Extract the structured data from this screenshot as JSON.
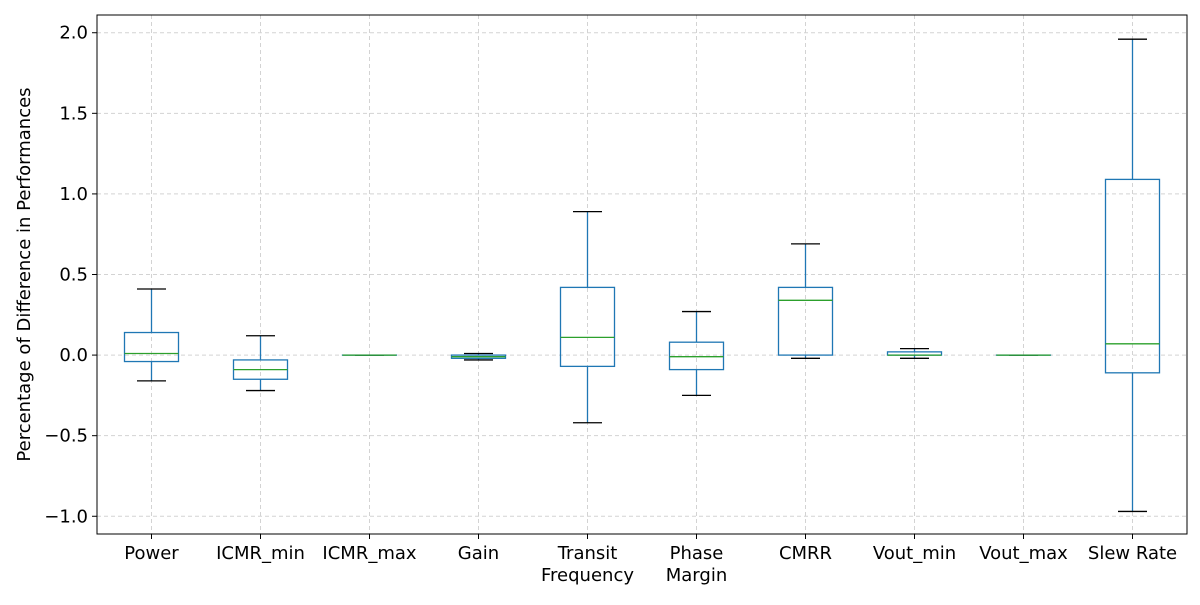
{
  "chart_data": {
    "type": "box",
    "title": "",
    "xlabel": "",
    "ylabel": "Percentage of Difference in Performances",
    "ylim": [
      -1.11,
      2.11
    ],
    "yticks": [
      -1.0,
      -0.5,
      0.0,
      0.5,
      1.0,
      1.5,
      2.0
    ],
    "ytick_labels": [
      "−1.0",
      "−0.5",
      "0.0",
      "0.5",
      "1.0",
      "1.5",
      "2.0"
    ],
    "grid": true,
    "categories": [
      [
        "Power"
      ],
      [
        "ICMR_min"
      ],
      [
        "ICMR_max"
      ],
      [
        "Gain"
      ],
      [
        "Transit",
        "Frequency"
      ],
      [
        "Phase",
        "Margin"
      ],
      [
        "CMRR"
      ],
      [
        "Vout_min"
      ],
      [
        "Vout_max"
      ],
      [
        "Slew Rate"
      ]
    ],
    "boxes": [
      {
        "whisker_low": -0.16,
        "q1": -0.04,
        "median": 0.01,
        "q3": 0.14,
        "whisker_high": 0.41
      },
      {
        "whisker_low": -0.22,
        "q1": -0.15,
        "median": -0.09,
        "q3": -0.03,
        "whisker_high": 0.12
      },
      {
        "whisker_low": 0.0,
        "q1": 0.0,
        "median": 0.0,
        "q3": 0.0,
        "whisker_high": 0.0
      },
      {
        "whisker_low": -0.03,
        "q1": -0.02,
        "median": -0.01,
        "q3": 0.0,
        "whisker_high": 0.01
      },
      {
        "whisker_low": -0.42,
        "q1": -0.07,
        "median": 0.11,
        "q3": 0.42,
        "whisker_high": 0.89
      },
      {
        "whisker_low": -0.25,
        "q1": -0.09,
        "median": -0.01,
        "q3": 0.08,
        "whisker_high": 0.27
      },
      {
        "whisker_low": -0.02,
        "q1": 0.0,
        "median": 0.34,
        "q3": 0.42,
        "whisker_high": 0.69
      },
      {
        "whisker_low": -0.02,
        "q1": 0.0,
        "median": 0.0,
        "q3": 0.02,
        "whisker_high": 0.04
      },
      {
        "whisker_low": 0.0,
        "q1": 0.0,
        "median": 0.0,
        "q3": 0.0,
        "whisker_high": 0.0
      },
      {
        "whisker_low": -0.97,
        "q1": -0.11,
        "median": 0.07,
        "q3": 1.09,
        "whisker_high": 1.96
      }
    ],
    "colors": {
      "box": "#1f77b4",
      "median": "#2ca02c",
      "whisker_cap": "#000000",
      "grid": "#d3d3d3"
    }
  }
}
